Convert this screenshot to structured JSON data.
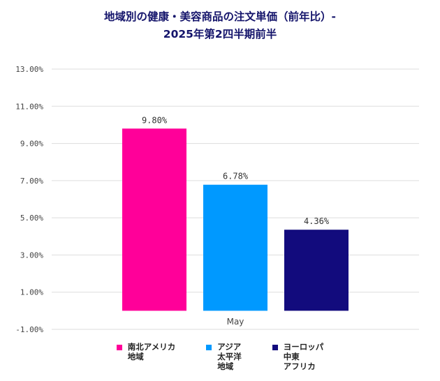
{
  "chart_data": {
    "type": "bar",
    "title_lines": [
      "地域別の健康・美容商品の注文単価（前年比）-",
      "2025年第2四半期前半"
    ],
    "categories": [
      "May"
    ],
    "series": [
      {
        "name": "南北アメリカ\n地域",
        "values": [
          9.8
        ],
        "label": "9.80%",
        "color": "#ff0099"
      },
      {
        "name": "アジア\n太平洋\n地域",
        "values": [
          6.78
        ],
        "label": "6.78%",
        "color": "#0099ff"
      },
      {
        "name": "ヨーロッパ\n中東\nアフリカ",
        "values": [
          4.36
        ],
        "label": "4.36%",
        "color": "#120b7d"
      }
    ],
    "yticks": [
      "13.00%",
      "11.00%",
      "9.00%",
      "7.00%",
      "5.00%",
      "3.00%",
      "1.00%",
      "-1.00%"
    ],
    "ylim": [
      -1,
      13
    ],
    "grid": true,
    "legend": "bottom"
  }
}
